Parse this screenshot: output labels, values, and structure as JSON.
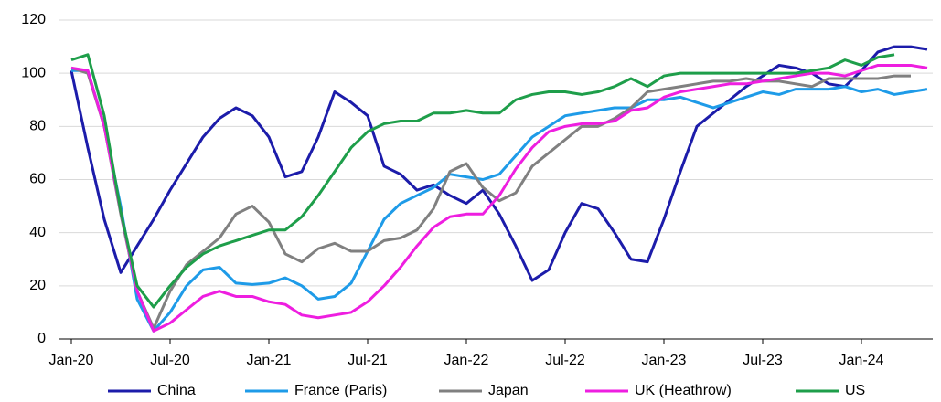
{
  "chart_data": {
    "type": "line",
    "categories": [
      "Jan-20",
      null,
      null,
      null,
      null,
      null,
      "Jul-20",
      null,
      null,
      null,
      null,
      null,
      "Jan-21",
      null,
      null,
      null,
      null,
      null,
      "Jul-21",
      null,
      null,
      null,
      null,
      null,
      "Jan-22",
      null,
      null,
      null,
      null,
      null,
      "Jul-22",
      null,
      null,
      null,
      null,
      null,
      "Jan-23",
      null,
      null,
      null,
      null,
      null,
      "Jul-23",
      null,
      null,
      null,
      null,
      null,
      "Jan-24",
      null,
      null,
      null,
      null
    ],
    "series": [
      {
        "name": "China",
        "color": "#1c1caa",
        "values": [
          101,
          72,
          45,
          25,
          35,
          45,
          56,
          66,
          76,
          83,
          87,
          84,
          76,
          61,
          63,
          76,
          93,
          89,
          84,
          65,
          62,
          56,
          58,
          54,
          51,
          56,
          47,
          35,
          22,
          26,
          40,
          51,
          49,
          40,
          30,
          29,
          45,
          63,
          80,
          85,
          90,
          95,
          99,
          103,
          102,
          100,
          96,
          95,
          101,
          108,
          110,
          110,
          109
        ]
      },
      {
        "name": "France (Paris)",
        "color": "#1e9be8",
        "values": [
          101,
          101,
          80,
          50,
          15,
          3,
          10,
          20,
          26,
          27,
          21,
          20.5,
          21,
          23,
          20,
          15,
          16,
          21,
          33,
          45,
          51,
          54,
          57,
          62,
          61,
          60,
          62,
          69,
          76,
          80,
          84,
          85,
          86,
          87,
          87,
          90,
          90,
          91,
          89,
          87,
          89,
          91,
          93,
          92,
          94,
          94,
          94,
          95,
          93,
          94,
          92,
          93,
          94
        ]
      },
      {
        "name": "Japan",
        "color": "#808080",
        "values": [
          102,
          100,
          80,
          47,
          18,
          4,
          18,
          28,
          33,
          38,
          47,
          50,
          44,
          32,
          29,
          34,
          36,
          33,
          33,
          37,
          38,
          41,
          49,
          63,
          66,
          57,
          52,
          55,
          65,
          70,
          75,
          80,
          80,
          83,
          87,
          93,
          94,
          95,
          96,
          97,
          97,
          98,
          97,
          97,
          96,
          95,
          98,
          98,
          98,
          98,
          99,
          99,
          null
        ]
      },
      {
        "name": "UK (Heathrow)",
        "color": "#ee1ee0",
        "values": [
          102,
          101,
          80,
          48,
          18,
          3,
          6,
          11,
          16,
          18,
          16,
          16,
          14,
          13,
          9,
          8,
          9,
          10,
          14,
          20,
          27,
          35,
          42,
          46,
          47,
          47,
          54,
          64,
          72,
          78,
          80,
          81,
          81,
          82,
          86,
          87,
          91,
          93,
          94,
          95,
          96,
          96,
          97,
          98,
          99,
          100,
          100,
          99,
          101,
          103,
          103,
          103,
          102
        ]
      },
      {
        "name": "US",
        "color": "#1e9e4a",
        "values": [
          105,
          107,
          84,
          48,
          20,
          12,
          20,
          27,
          32,
          35,
          37,
          39,
          41,
          41,
          46,
          54,
          63,
          72,
          78,
          81,
          82,
          82,
          85,
          85,
          86,
          85,
          85,
          90,
          92,
          93,
          93,
          92,
          93,
          95,
          98,
          95,
          99,
          100,
          100,
          100,
          100,
          100,
          100,
          100,
          100,
          101,
          102,
          105,
          103,
          106,
          107,
          null,
          null
        ]
      }
    ],
    "ylim": [
      0,
      120
    ],
    "yticks": [
      0,
      20,
      40,
      60,
      80,
      100,
      120
    ],
    "grid": true
  }
}
